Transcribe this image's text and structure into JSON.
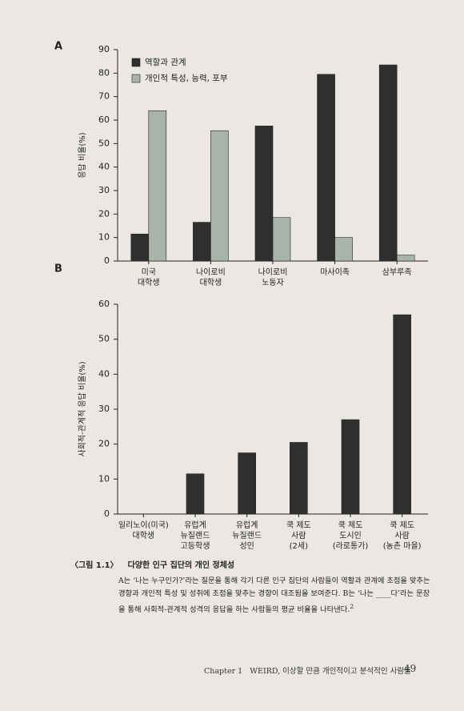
{
  "chart_data": [
    {
      "type": "bar",
      "panel": "A",
      "y_label": "응답 비율(%)",
      "categories": [
        [
          "미국",
          "대학생"
        ],
        [
          "나이로비",
          "대학생"
        ],
        [
          "나이로비",
          "노동자"
        ],
        [
          "마사이족"
        ],
        [
          "삼부루족"
        ]
      ],
      "series": [
        {
          "name": "역할과 관계",
          "color": "#2f2f2f",
          "values": [
            11.5,
            16.5,
            57.5,
            79.5,
            83.5
          ]
        },
        {
          "name": "개인적 특성, 능력, 포부",
          "color": "#a8b4aa",
          "values": [
            64,
            55.5,
            18.5,
            10,
            2.5
          ]
        }
      ],
      "ylim": [
        0,
        90
      ],
      "yticks": [
        0,
        10,
        20,
        30,
        40,
        50,
        60,
        70,
        80,
        90
      ],
      "legend": "top-left"
    },
    {
      "type": "bar",
      "panel": "B",
      "y_label": "사회적-관계적 응답 비율(%)",
      "categories": [
        [
          "일리노이(미국)",
          "대학생"
        ],
        [
          "유럽계",
          "뉴질랜드",
          "고등학생"
        ],
        [
          "유럽계",
          "뉴질랜드",
          "성인"
        ],
        [
          "쿡 제도",
          "사람",
          "(2세)"
        ],
        [
          "쿡 제도",
          "도시인",
          "(라로통가)"
        ],
        [
          "쿡 제도",
          "사람",
          "(농촌 마을)"
        ]
      ],
      "values": [
        0,
        11.5,
        17.5,
        20.5,
        27,
        57
      ],
      "color": "#2f2f2f",
      "ylim": [
        0,
        60
      ],
      "yticks": [
        0,
        10,
        20,
        30,
        40,
        50,
        60
      ]
    }
  ],
  "caption": {
    "label": "〈그림 1.1〉",
    "title": "다양한 인구 집단의 개인 정체성",
    "text": "A는 ‘나는 누구인가?’라는 질문을 통해 각기 다른 인구 집단의 사람들이 역할과 관계에 초점을 맞추는 경향과 개인적 특성 및 성취에 초점을 맞추는 경향이 대조됨을 보여준다. B는 ‘나는 ____다’라는 문장을 통해 사회적-관계적 성격의 응답을 하는 사람들의 평균 비율을 나타낸다.",
    "note": "2"
  },
  "footer": {
    "chapter": "Chapter 1",
    "title": "WEIRD, 이상할 만큼 개인적이고 분석적인 사람들",
    "page": "49"
  }
}
